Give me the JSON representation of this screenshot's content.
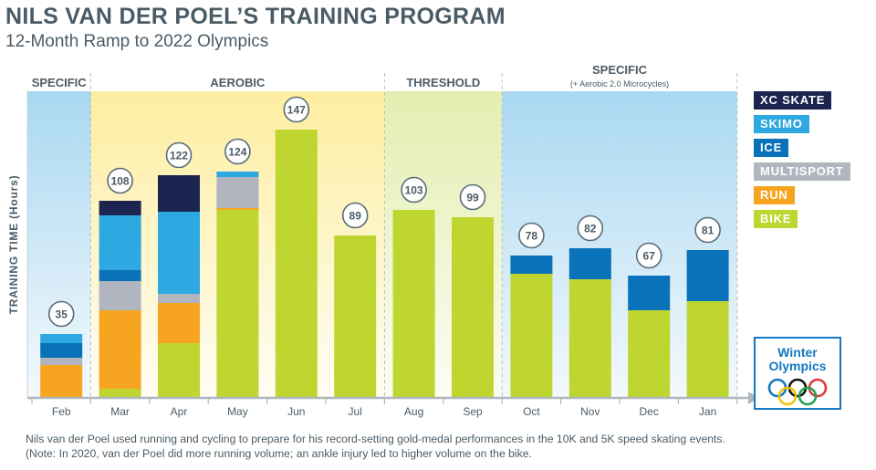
{
  "header": {
    "title": "NILS VAN DER POEL’S TRAINING PROGRAM",
    "subtitle": "12-Month Ramp to 2022 Olympics"
  },
  "phases": [
    {
      "label": "SPECIFIC",
      "sublabel": "",
      "months": [
        "Feb"
      ],
      "color": "#a9d8f1"
    },
    {
      "label": "AEROBIC",
      "sublabel": "",
      "months": [
        "Mar",
        "Apr",
        "May",
        "Jun",
        "Jul"
      ],
      "color": "#fdefa3"
    },
    {
      "label": "THRESHOLD",
      "sublabel": "",
      "months": [
        "Aug",
        "Sep"
      ],
      "color": "#e6efb4"
    },
    {
      "label": "SPECIFIC",
      "sublabel": "(+ Aerobic 2.0 Microcycles)",
      "months": [
        "Oct",
        "Nov",
        "Dec",
        "Jan"
      ],
      "color": "#a9d8f1"
    }
  ],
  "chart_data": {
    "type": "bar",
    "stacked": true,
    "title": "NILS VAN DER POEL’S TRAINING PROGRAM",
    "subtitle": "12-Month Ramp to 2022 Olympics",
    "xlabel": "",
    "ylabel": "TRAINING TIME (Hours)",
    "ylim": [
      0,
      150
    ],
    "grid": false,
    "legend_position": "right",
    "categories": [
      "Feb",
      "Mar",
      "Apr",
      "May",
      "Jun",
      "Jul",
      "Aug",
      "Sep",
      "Oct",
      "Nov",
      "Dec",
      "Jan"
    ],
    "totals": [
      35,
      108,
      122,
      124,
      147,
      89,
      103,
      99,
      78,
      82,
      67,
      81
    ],
    "series": [
      {
        "name": "BIKE",
        "color": "#bed62f",
        "values": [
          0,
          5,
          30,
          103,
          147,
          89,
          103,
          99,
          68,
          65,
          48,
          53
        ]
      },
      {
        "name": "RUN",
        "color": "#f7a520",
        "values": [
          18,
          43,
          22,
          1,
          0,
          0,
          0,
          0,
          0,
          0,
          0,
          0
        ]
      },
      {
        "name": "MULTISPORT",
        "color": "#b0b5bf",
        "values": [
          4,
          16,
          5,
          17,
          0,
          0,
          0,
          0,
          0,
          0,
          0,
          0
        ]
      },
      {
        "name": "ICE",
        "color": "#0a72b9",
        "values": [
          8,
          6,
          0,
          0,
          0,
          0,
          0,
          0,
          10,
          17,
          19,
          28
        ]
      },
      {
        "name": "SKIMO",
        "color": "#2ea8e0",
        "values": [
          5,
          30,
          45,
          3,
          0,
          0,
          0,
          0,
          0,
          0,
          0,
          0
        ]
      },
      {
        "name": "XC SKATE",
        "color": "#1b2550",
        "values": [
          0,
          8,
          20,
          0,
          0,
          0,
          0,
          0,
          0,
          0,
          0,
          0
        ]
      }
    ]
  },
  "legend": [
    "XC SKATE",
    "SKIMO",
    "ICE",
    "MULTISPORT",
    "RUN",
    "BIKE"
  ],
  "logo": {
    "line1": "Winter",
    "line2": "Olympics"
  },
  "footer": {
    "line1": "Nils van der Poel used running and cycling to prepare for his record-setting gold-medal performances in the 10K and 5K speed skating events.",
    "line2": "(Note: In 2020, van der Poel did more running volume; an ankle injury led to higher volume on the bike."
  }
}
